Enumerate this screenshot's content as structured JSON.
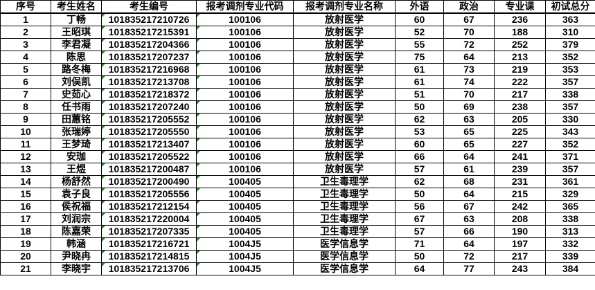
{
  "colors": {
    "grid_line": "#000000",
    "text": "#000000",
    "background": "#ffffff",
    "error_indicator_green": "#1e8f1e"
  },
  "table": {
    "keys": [
      "index",
      "name",
      "candidate_id",
      "major_code",
      "major_name",
      "foreign_language",
      "politics",
      "major_course",
      "total_score"
    ],
    "columns": [
      "序号",
      "考生姓名",
      "考生编号",
      "报考调剂专业代码",
      "报考调剂专业名称",
      "外语",
      "政治",
      "专业课",
      "初试总分"
    ],
    "text_format_flag_columns": [
      2,
      3
    ],
    "rows": [
      [
        "1",
        "丁畅",
        "101835217210726",
        "100106",
        "放射医学",
        "60",
        "67",
        "236",
        "363"
      ],
      [
        "2",
        "王昭琪",
        "101835217215391",
        "100106",
        "放射医学",
        "52",
        "70",
        "188",
        "310"
      ],
      [
        "3",
        "李君凝",
        "101835217204366",
        "100106",
        "放射医学",
        "55",
        "72",
        "252",
        "379"
      ],
      [
        "4",
        "陈思",
        "101835217207237",
        "100106",
        "放射医学",
        "75",
        "64",
        "213",
        "352"
      ],
      [
        "5",
        "路冬梅",
        "101835217216968",
        "100106",
        "放射医学",
        "61",
        "73",
        "219",
        "353"
      ],
      [
        "6",
        "刘俣凯",
        "101835217213708",
        "100106",
        "放射医学",
        "61",
        "74",
        "222",
        "357"
      ],
      [
        "7",
        "史茹心",
        "101835217218372",
        "100106",
        "放射医学",
        "51",
        "70",
        "217",
        "338"
      ],
      [
        "8",
        "任书雨",
        "101835217207240",
        "100106",
        "放射医学",
        "50",
        "69",
        "238",
        "357"
      ],
      [
        "9",
        "田蕙铭",
        "101835217205552",
        "100106",
        "放射医学",
        "62",
        "63",
        "205",
        "330"
      ],
      [
        "10",
        "张瑞婷",
        "101835217205550",
        "100106",
        "放射医学",
        "53",
        "65",
        "225",
        "343"
      ],
      [
        "11",
        "王梦琦",
        "101835217213407",
        "100106",
        "放射医学",
        "60",
        "65",
        "227",
        "352"
      ],
      [
        "12",
        "安珈",
        "101835217205522",
        "100106",
        "放射医学",
        "66",
        "64",
        "241",
        "371"
      ],
      [
        "13",
        "王煜",
        "101835217200487",
        "100106",
        "放射医学",
        "57",
        "61",
        "239",
        "357"
      ],
      [
        "14",
        "杨舒然",
        "101835217200490",
        "100405",
        "卫生毒理学",
        "62",
        "68",
        "231",
        "361"
      ],
      [
        "15",
        "袁子良",
        "101835217205556",
        "100405",
        "卫生毒理学",
        "50",
        "64",
        "215",
        "329"
      ],
      [
        "16",
        "侯祝福",
        "101835217212154",
        "100405",
        "卫生毒理学",
        "56",
        "67",
        "242",
        "365"
      ],
      [
        "17",
        "刘润宗",
        "101835217220004",
        "100405",
        "卫生毒理学",
        "67",
        "63",
        "208",
        "338"
      ],
      [
        "18",
        "陈嘉荣",
        "101835217207335",
        "100405",
        "卫生毒理学",
        "57",
        "66",
        "190",
        "313"
      ],
      [
        "19",
        "韩涵",
        "101835217216721",
        "1004J5",
        "医学信息学",
        "71",
        "64",
        "197",
        "332"
      ],
      [
        "20",
        "尹晓冉",
        "101835217214815",
        "1004J5",
        "医学信息学",
        "50",
        "72",
        "217",
        "339"
      ],
      [
        "21",
        "李晓宇",
        "101835217213706",
        "1004J5",
        "医学信息学",
        "64",
        "77",
        "243",
        "384"
      ]
    ]
  }
}
